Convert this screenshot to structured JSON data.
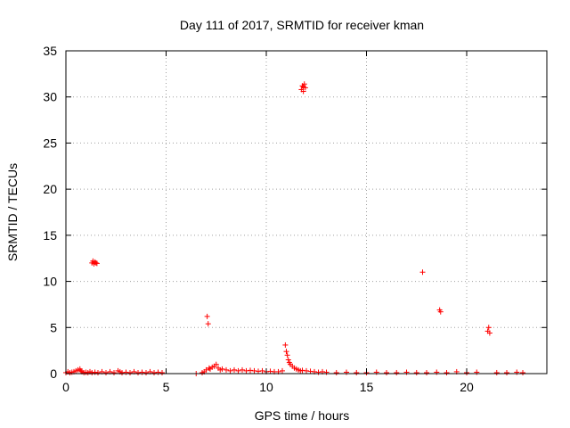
{
  "chart_data": {
    "type": "scatter",
    "title": "Day 111 of 2017, SRMTID for receiver kman",
    "xlabel": "GPS time / hours",
    "ylabel": "SRMTID / TECUs",
    "xlim": [
      0,
      24
    ],
    "ylim": [
      0,
      35
    ],
    "xticks": [
      0,
      5,
      10,
      15,
      20
    ],
    "yticks": [
      0,
      5,
      10,
      15,
      20,
      25,
      30,
      35
    ],
    "xtick_labels": [
      "0",
      "5",
      "10",
      "15",
      "20"
    ],
    "ytick_labels": [
      "0",
      "5",
      "10",
      "15",
      "20",
      "25",
      "30",
      "35"
    ],
    "grid": true,
    "marker": "+",
    "color": "#ff0000",
    "series": [
      {
        "points": [
          [
            0.0,
            0.1
          ],
          [
            0.1,
            0.2
          ],
          [
            0.2,
            0.1
          ],
          [
            0.3,
            0.15
          ],
          [
            0.4,
            0.2
          ],
          [
            0.5,
            0.3
          ],
          [
            0.6,
            0.4
          ],
          [
            0.7,
            0.5
          ],
          [
            0.75,
            0.3
          ],
          [
            0.8,
            0.2
          ],
          [
            0.9,
            0.1
          ],
          [
            1.0,
            0.15
          ],
          [
            1.1,
            0.1
          ],
          [
            1.2,
            0.2
          ],
          [
            1.3,
            0.1
          ],
          [
            1.45,
            0.15
          ],
          [
            1.6,
            0.1
          ],
          [
            1.8,
            0.2
          ],
          [
            2.0,
            0.1
          ],
          [
            2.2,
            0.2
          ],
          [
            2.4,
            0.1
          ],
          [
            2.6,
            0.3
          ],
          [
            2.7,
            0.2
          ],
          [
            2.8,
            0.1
          ],
          [
            3.0,
            0.15
          ],
          [
            3.2,
            0.1
          ],
          [
            3.4,
            0.2
          ],
          [
            3.6,
            0.1
          ],
          [
            3.8,
            0.15
          ],
          [
            4.0,
            0.1
          ],
          [
            4.2,
            0.2
          ],
          [
            4.4,
            0.1
          ],
          [
            4.6,
            0.15
          ],
          [
            4.8,
            0.1
          ],
          [
            1.3,
            12.0
          ],
          [
            1.35,
            12.2
          ],
          [
            1.4,
            11.9
          ],
          [
            1.45,
            12.1
          ],
          [
            1.5,
            12.0
          ],
          [
            1.55,
            11.95
          ],
          [
            6.5,
            0.0
          ],
          [
            6.8,
            0.1
          ],
          [
            6.9,
            0.2
          ],
          [
            7.0,
            0.4
          ],
          [
            7.05,
            6.2
          ],
          [
            7.1,
            5.4
          ],
          [
            7.15,
            0.6
          ],
          [
            7.2,
            0.5
          ],
          [
            7.3,
            0.7
          ],
          [
            7.4,
            0.8
          ],
          [
            7.5,
            1.0
          ],
          [
            7.6,
            0.6
          ],
          [
            7.7,
            0.4
          ],
          [
            7.8,
            0.5
          ],
          [
            8.0,
            0.4
          ],
          [
            8.2,
            0.3
          ],
          [
            8.4,
            0.4
          ],
          [
            8.6,
            0.3
          ],
          [
            8.8,
            0.4
          ],
          [
            9.0,
            0.3
          ],
          [
            9.2,
            0.35
          ],
          [
            9.4,
            0.3
          ],
          [
            9.6,
            0.25
          ],
          [
            9.8,
            0.3
          ],
          [
            10.0,
            0.2
          ],
          [
            10.2,
            0.25
          ],
          [
            10.4,
            0.2
          ],
          [
            10.6,
            0.2
          ],
          [
            10.8,
            0.3
          ],
          [
            10.95,
            3.1
          ],
          [
            11.0,
            2.4
          ],
          [
            11.05,
            2.0
          ],
          [
            11.1,
            1.5
          ],
          [
            11.15,
            1.2
          ],
          [
            11.2,
            1.0
          ],
          [
            11.3,
            0.8
          ],
          [
            11.4,
            0.6
          ],
          [
            11.5,
            0.5
          ],
          [
            11.6,
            0.4
          ],
          [
            11.7,
            0.3
          ],
          [
            11.8,
            0.35
          ],
          [
            12.0,
            0.3
          ],
          [
            12.2,
            0.25
          ],
          [
            12.4,
            0.2
          ],
          [
            12.6,
            0.15
          ],
          [
            12.8,
            0.2
          ],
          [
            13.0,
            0.15
          ],
          [
            11.75,
            30.8
          ],
          [
            11.8,
            31.2
          ],
          [
            11.85,
            30.6
          ],
          [
            11.9,
            31.4
          ],
          [
            11.95,
            31.0
          ],
          [
            11.85,
            31.1
          ],
          [
            13.5,
            0.1
          ],
          [
            14.0,
            0.15
          ],
          [
            14.5,
            0.1
          ],
          [
            15.0,
            0.1
          ],
          [
            15.5,
            0.15
          ],
          [
            16.0,
            0.1
          ],
          [
            16.5,
            0.1
          ],
          [
            17.0,
            0.15
          ],
          [
            17.5,
            0.1
          ],
          [
            17.8,
            11.0
          ],
          [
            18.0,
            0.1
          ],
          [
            18.5,
            0.15
          ],
          [
            18.65,
            6.9
          ],
          [
            18.7,
            6.7
          ],
          [
            19.0,
            0.1
          ],
          [
            19.5,
            0.2
          ],
          [
            20.0,
            0.1
          ],
          [
            20.5,
            0.15
          ],
          [
            21.1,
            5.0
          ],
          [
            21.05,
            4.6
          ],
          [
            21.15,
            4.4
          ],
          [
            21.5,
            0.1
          ],
          [
            22.0,
            0.1
          ],
          [
            22.5,
            0.15
          ],
          [
            22.8,
            0.1
          ]
        ]
      }
    ]
  }
}
